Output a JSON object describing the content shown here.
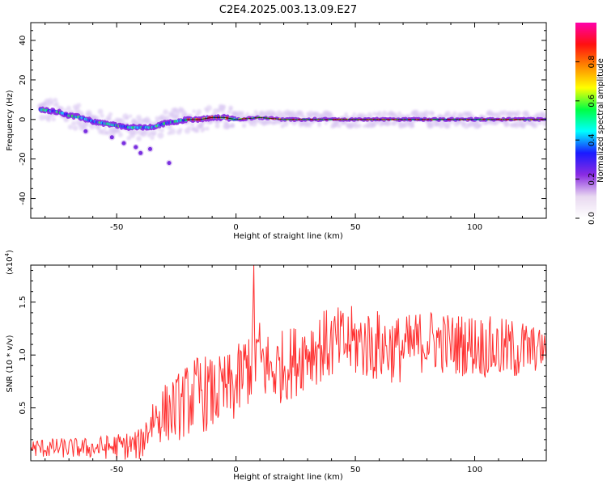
{
  "title": "C2E4.2025.003.13.09.E27",
  "chart_data": [
    {
      "type": "heatmap",
      "xlabel": "Height of straight line (km)",
      "ylabel": "Frequency (Hz)",
      "xlim": [
        -86,
        130
      ],
      "ylim": [
        -50,
        49
      ],
      "x_ticks": [
        -50,
        0,
        50,
        100
      ],
      "y_ticks": [
        -40,
        -20,
        0,
        20,
        40
      ],
      "ridge_x": [
        -82,
        -75,
        -70,
        -65,
        -60,
        -55,
        -50,
        -45,
        -40,
        -35,
        -30,
        -25,
        -20,
        -15,
        -10,
        -5,
        0,
        10,
        20,
        30,
        40,
        50,
        60,
        70,
        80,
        90,
        100,
        110,
        120,
        130
      ],
      "ridge_y": [
        5,
        4,
        2,
        1,
        -1,
        -2,
        -3,
        -4,
        -4,
        -4,
        -2,
        -1,
        0,
        0,
        1,
        1,
        0,
        1,
        0,
        0,
        0,
        0,
        0,
        0,
        0,
        0,
        0,
        0,
        0,
        0
      ],
      "scatter_points": [
        {
          "x": -47,
          "y": -12
        },
        {
          "x": -42,
          "y": -14
        },
        {
          "x": -40,
          "y": -17
        },
        {
          "x": -36,
          "y": -15
        },
        {
          "x": -28,
          "y": -22
        },
        {
          "x": -52,
          "y": -9
        },
        {
          "x": -63,
          "y": -6
        }
      ],
      "colorbar": {
        "label": "Normalized spectral amplitude",
        "range": [
          0,
          1
        ],
        "ticks": [
          0.0,
          0.2,
          0.4,
          0.6,
          0.8
        ],
        "stops": [
          "#ffffff",
          "#e8d8f0",
          "#8a2be2",
          "#1a1aff",
          "#00ffff",
          "#00ff44",
          "#ffff00",
          "#ff8800",
          "#ff1010",
          "#ff00aa"
        ]
      },
      "grid": false
    },
    {
      "type": "line",
      "xlabel": "Height of straight line (km)",
      "ylabel": "SNR (10 * v/v)",
      "scale_label": "(x10",
      "scale_exp": "4",
      "scale_close": ")",
      "xlim": [
        -86,
        130
      ],
      "ylim": [
        0,
        18500
      ],
      "x_ticks": [
        -50,
        0,
        50,
        100
      ],
      "y_ticks": [
        5000,
        10000,
        15000
      ],
      "y_tick_labels": [
        "0.5",
        "1.0",
        "1.5"
      ],
      "color": "#ff3030",
      "envelope_x": [
        -86,
        -60,
        -40,
        -35,
        -30,
        -25,
        -20,
        -15,
        -10,
        -5,
        0,
        5,
        8,
        10,
        15,
        20,
        25,
        30,
        40,
        50,
        60,
        70,
        80,
        90,
        100,
        110,
        120,
        130
      ],
      "envelope_mean": [
        1200,
        1200,
        1500,
        4000,
        4500,
        5000,
        5800,
        6500,
        6200,
        6600,
        7000,
        9000,
        10500,
        9500,
        8500,
        9000,
        9500,
        10500,
        11000,
        11200,
        10800,
        10500,
        11500,
        11000,
        11000,
        10500,
        10500,
        10600
      ],
      "envelope_amp": [
        900,
        1000,
        1500,
        2500,
        2800,
        3200,
        3500,
        3800,
        3500,
        3500,
        3500,
        4000,
        5000,
        4000,
        3500,
        3500,
        3500,
        3500,
        3500,
        3500,
        3500,
        3200,
        3000,
        3000,
        3000,
        3000,
        3000,
        1500
      ],
      "max_point": {
        "x": 7.5,
        "y": 18500
      },
      "grid": false
    }
  ]
}
